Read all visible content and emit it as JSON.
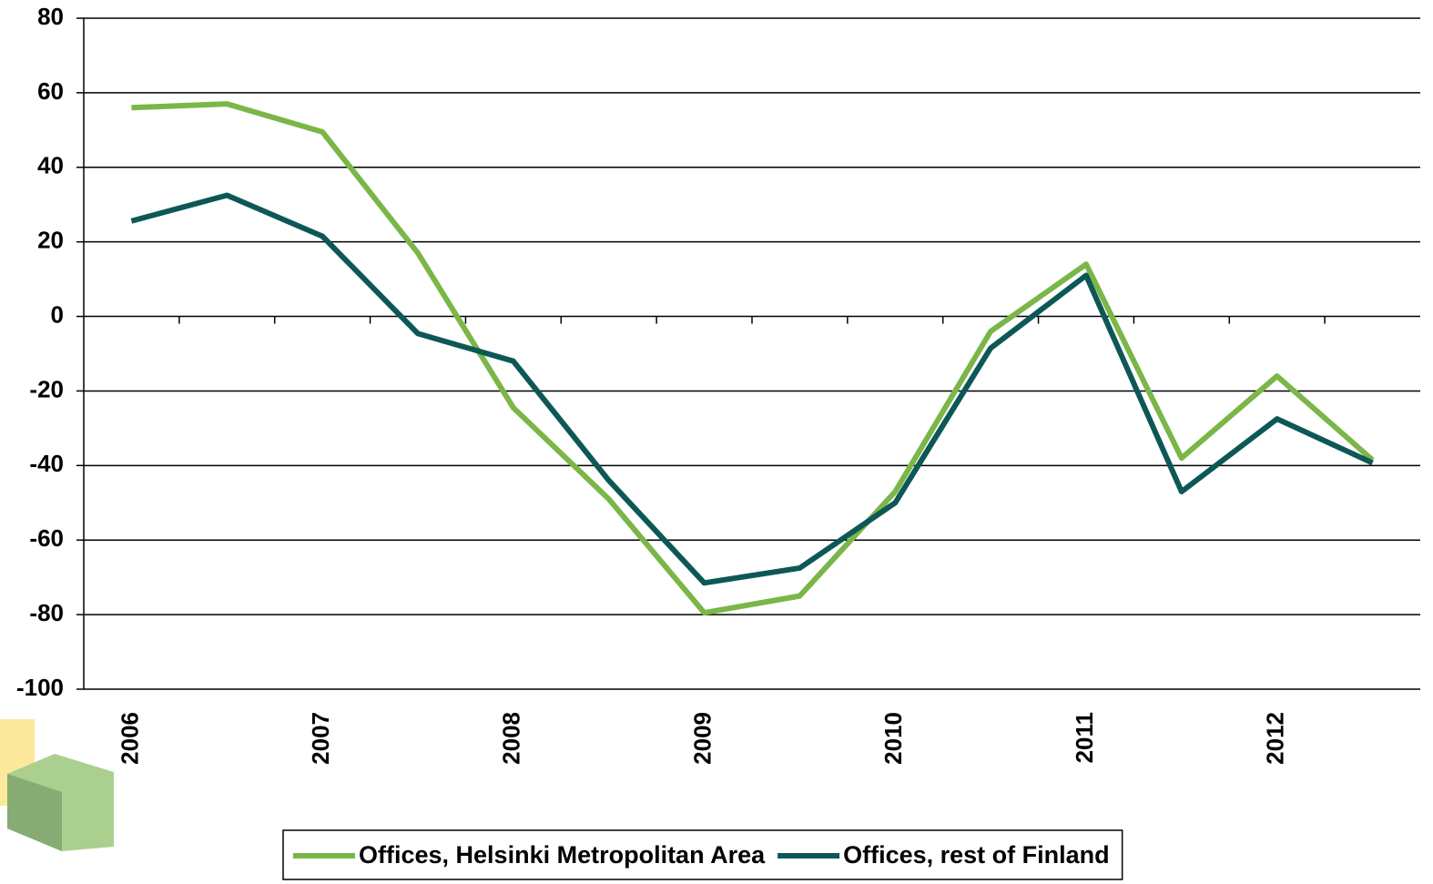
{
  "chart_data": {
    "type": "line",
    "categories": [
      "2006",
      null,
      "2007",
      null,
      "2008",
      null,
      "2009",
      null,
      "2010",
      null,
      "2011",
      null,
      "2012",
      null
    ],
    "series": [
      {
        "name": "Offices, Helsinki Metropolitan Area",
        "color": "#7ab648",
        "values": [
          56,
          57,
          49.5,
          17,
          -24.5,
          -49,
          -79.5,
          -75,
          -47,
          -4,
          14,
          -38,
          -16,
          -38.5
        ]
      },
      {
        "name": "Offices, rest of Finland",
        "color": "#0d5857",
        "values": [
          25.6,
          32.5,
          21.5,
          -4.6,
          -12,
          -44,
          -71.5,
          -67.5,
          -50,
          -8.5,
          11,
          -47,
          -27.5,
          -39.3
        ]
      }
    ],
    "ylim": [
      -100,
      80
    ],
    "yticks": [
      -100,
      -80,
      -60,
      -40,
      -20,
      0,
      20,
      40,
      60,
      80
    ],
    "grid": true,
    "legend": "bottom"
  }
}
